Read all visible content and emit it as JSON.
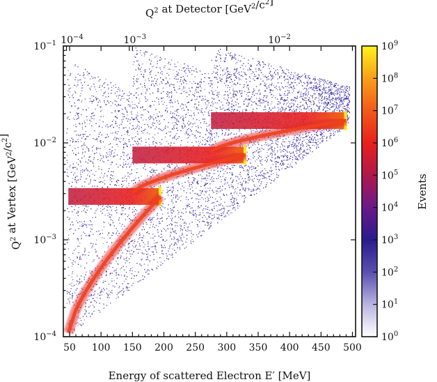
{
  "chart_data": {
    "type": "heatmap",
    "title": "",
    "xlabel": "Energy of scattered Electron E′ [MeV]",
    "ylabel": "Q² at Vertex [GeV²/c²]",
    "x2label": "Q² at Detector [GeV²/c²]",
    "colorbar_label": "Events",
    "xlim": [
      40,
      505
    ],
    "ylim": [
      0.0001,
      0.1
    ],
    "y_scale": "log",
    "x_ticks": [
      "50",
      "100",
      "150",
      "200",
      "250",
      "300",
      "350",
      "400",
      "450",
      "500"
    ],
    "y_ticks": [
      {
        "mantissa": "10",
        "exp": "−4",
        "value": 0.0001
      },
      {
        "mantissa": "10",
        "exp": "−3",
        "value": 0.001
      },
      {
        "mantissa": "10",
        "exp": "−2",
        "value": 0.01
      },
      {
        "mantissa": "10",
        "exp": "−1",
        "value": 0.1
      }
    ],
    "x2_ticks": [
      {
        "mantissa": "10",
        "exp": "−4",
        "at_energy": 45
      },
      {
        "mantissa": "10",
        "exp": "−3",
        "at_energy": 145
      },
      {
        "mantissa": "10",
        "exp": "−2",
        "at_energy": 375
      }
    ],
    "colorbar": {
      "scale": "log",
      "range": [
        1,
        1000000000
      ],
      "ticks": [
        {
          "mantissa": "10",
          "exp": "9"
        },
        {
          "mantissa": "10",
          "exp": "8"
        },
        {
          "mantissa": "10",
          "exp": "7"
        },
        {
          "mantissa": "10",
          "exp": "6"
        },
        {
          "mantissa": "10",
          "exp": "5"
        },
        {
          "mantissa": "10",
          "exp": "4"
        },
        {
          "mantissa": "10",
          "exp": "3"
        },
        {
          "mantissa": "10",
          "exp": "2"
        },
        {
          "mantissa": "10",
          "exp": "1"
        },
        {
          "mantissa": "10",
          "exp": "0"
        }
      ],
      "colors": [
        "#ffffff",
        "#b9b4e0",
        "#5a4fb0",
        "#2a1b8c",
        "#6a1a8a",
        "#b0184a",
        "#e8201c",
        "#f25a1a",
        "#f8a018",
        "#fff21c"
      ]
    },
    "structure": {
      "beam_energies_mev": [
        195,
        330,
        490
      ],
      "plateau_q2": [
        0.0028,
        0.0075,
        0.017
      ],
      "plateau_energy_start_mev": [
        48,
        150,
        275
      ],
      "curve_start_q2": 0.0001,
      "curve_start_energy_mev": 48
    }
  }
}
